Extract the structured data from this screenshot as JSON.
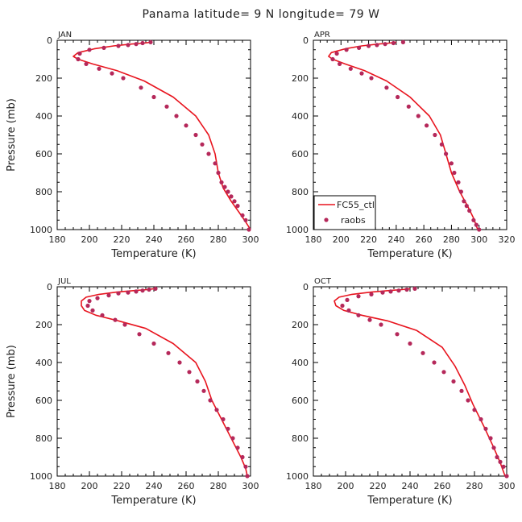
{
  "figure_title": "Panama  latitude= 9 N longitude= 79 W",
  "colors": {
    "model_line": "#e8141e",
    "obs_marker": "#b5285a",
    "axis": "#000000"
  },
  "chart_data": [
    {
      "type": "line",
      "panel_label": "JAN",
      "xlabel": "Temperature (K)",
      "ylabel": "Pressure (mb)",
      "xlim": [
        180,
        300
      ],
      "ylim": [
        1000,
        0
      ],
      "x_ticks": [
        "180",
        "200",
        "220",
        "240",
        "260",
        "280",
        "300"
      ],
      "y_ticks": [
        "0",
        "200",
        "400",
        "600",
        "800",
        "1000"
      ],
      "series": [
        {
          "name": "FC55_ctl",
          "style": "line",
          "x": [
            238,
            234,
            226,
            215,
            203,
            193,
            190,
            193,
            202,
            217,
            234,
            252,
            266,
            274,
            278,
            280,
            283,
            288,
            293,
            297,
            300
          ],
          "y": [
            10,
            15,
            20,
            30,
            45,
            65,
            85,
            100,
            125,
            160,
            215,
            300,
            400,
            500,
            600,
            700,
            780,
            850,
            910,
            960,
            1000
          ]
        },
        {
          "name": "raobs",
          "style": "markers",
          "x": [
            238,
            233,
            229,
            224,
            218,
            209,
            200,
            194,
            193,
            198,
            206,
            214,
            221,
            232,
            240,
            248,
            254,
            260,
            266,
            270,
            274,
            278,
            280,
            282,
            284,
            286,
            288,
            290,
            292,
            295,
            297,
            299
          ],
          "y": [
            10,
            15,
            20,
            25,
            30,
            40,
            50,
            70,
            100,
            125,
            150,
            175,
            200,
            250,
            300,
            350,
            400,
            450,
            500,
            550,
            600,
            650,
            700,
            750,
            775,
            800,
            825,
            850,
            875,
            925,
            950,
            1000
          ]
        }
      ]
    },
    {
      "type": "line",
      "panel_label": "APR",
      "xlabel": "Temperature (K)",
      "ylabel": "",
      "xlim": [
        180,
        320
      ],
      "ylim": [
        1000,
        0
      ],
      "x_ticks": [
        "180",
        "200",
        "220",
        "240",
        "260",
        "280",
        "300",
        "320"
      ],
      "y_ticks": [
        "0",
        "200",
        "400",
        "600",
        "800",
        "1000"
      ],
      "series": [
        {
          "name": "FC55_ctl",
          "style": "line",
          "x": [
            240,
            235,
            227,
            215,
            203,
            193,
            191,
            194,
            203,
            217,
            233,
            250,
            264,
            272,
            276,
            280,
            286,
            292,
            296,
            299
          ],
          "y": [
            10,
            15,
            20,
            30,
            45,
            65,
            85,
            100,
            125,
            160,
            215,
            300,
            400,
            500,
            600,
            700,
            800,
            880,
            940,
            1000
          ]
        },
        {
          "name": "raobs",
          "style": "markers",
          "x": [
            245,
            238,
            232,
            226,
            220,
            213,
            204,
            197,
            194,
            199,
            207,
            215,
            222,
            233,
            241,
            249,
            256,
            262,
            268,
            273,
            276,
            280,
            282,
            285,
            287,
            289,
            291,
            293,
            296,
            298,
            300
          ],
          "y": [
            10,
            15,
            20,
            25,
            30,
            40,
            50,
            70,
            100,
            125,
            150,
            175,
            200,
            250,
            300,
            350,
            400,
            450,
            500,
            550,
            600,
            650,
            700,
            750,
            800,
            850,
            875,
            900,
            950,
            975,
            1000
          ]
        }
      ]
    },
    {
      "type": "line",
      "panel_label": "JUL",
      "xlabel": "Temperature (K)",
      "ylabel": "Pressure (mb)",
      "xlim": [
        180,
        300
      ],
      "ylim": [
        1000,
        0
      ],
      "x_ticks": [
        "180",
        "200",
        "220",
        "240",
        "260",
        "280",
        "300"
      ],
      "y_ticks": [
        "0",
        "200",
        "400",
        "600",
        "800",
        "1000"
      ],
      "series": [
        {
          "name": "FC55_ctl",
          "style": "line",
          "x": [
            240,
            236,
            228,
            217,
            206,
            198,
            195,
            195,
            197,
            204,
            218,
            235,
            252,
            266,
            272,
            276,
            282,
            288,
            294,
            297,
            298
          ],
          "y": [
            10,
            15,
            20,
            28,
            40,
            55,
            75,
            100,
            125,
            150,
            180,
            220,
            300,
            400,
            500,
            600,
            700,
            800,
            900,
            960,
            1000
          ]
        },
        {
          "name": "raobs",
          "style": "markers",
          "x": [
            241,
            237,
            233,
            229,
            224,
            218,
            212,
            205,
            200,
            199,
            202,
            208,
            216,
            222,
            231,
            240,
            249,
            256,
            262,
            267,
            271,
            275,
            279,
            283,
            286,
            289,
            292,
            295,
            297,
            298
          ],
          "y": [
            10,
            15,
            20,
            25,
            30,
            35,
            45,
            60,
            75,
            100,
            125,
            150,
            175,
            200,
            250,
            300,
            350,
            400,
            450,
            500,
            550,
            600,
            650,
            700,
            750,
            800,
            850,
            900,
            950,
            1000
          ]
        }
      ]
    },
    {
      "type": "line",
      "panel_label": "OCT",
      "xlabel": "Temperature (K)",
      "ylabel": "",
      "xlim": [
        180,
        300
      ],
      "ylim": [
        1000,
        0
      ],
      "x_ticks": [
        "180",
        "200",
        "220",
        "240",
        "260",
        "280",
        "300"
      ],
      "y_ticks": [
        "0",
        "200",
        "400",
        "600",
        "800",
        "1000"
      ],
      "series": [
        {
          "name": "FC55_ctl",
          "style": "line",
          "x": [
            240,
            235,
            227,
            216,
            204,
            196,
            193,
            194,
            199,
            210,
            226,
            244,
            260,
            268,
            274,
            279,
            286,
            292,
            296,
            299
          ],
          "y": [
            10,
            15,
            20,
            28,
            40,
            55,
            75,
            100,
            125,
            150,
            180,
            230,
            320,
            420,
            520,
            620,
            740,
            850,
            930,
            1000
          ]
        },
        {
          "name": "raobs",
          "style": "markers",
          "x": [
            243,
            238,
            233,
            228,
            223,
            216,
            208,
            201,
            198,
            202,
            208,
            215,
            222,
            232,
            240,
            248,
            255,
            261,
            267,
            272,
            276,
            280,
            284,
            287,
            290,
            292,
            294,
            296,
            298,
            300
          ],
          "y": [
            10,
            15,
            20,
            25,
            30,
            40,
            50,
            70,
            100,
            125,
            150,
            175,
            200,
            250,
            300,
            350,
            400,
            450,
            500,
            550,
            600,
            650,
            700,
            750,
            800,
            850,
            900,
            925,
            950,
            1000
          ]
        }
      ]
    }
  ],
  "legend": {
    "entries": [
      "FC55_ctl",
      "raobs"
    ]
  }
}
